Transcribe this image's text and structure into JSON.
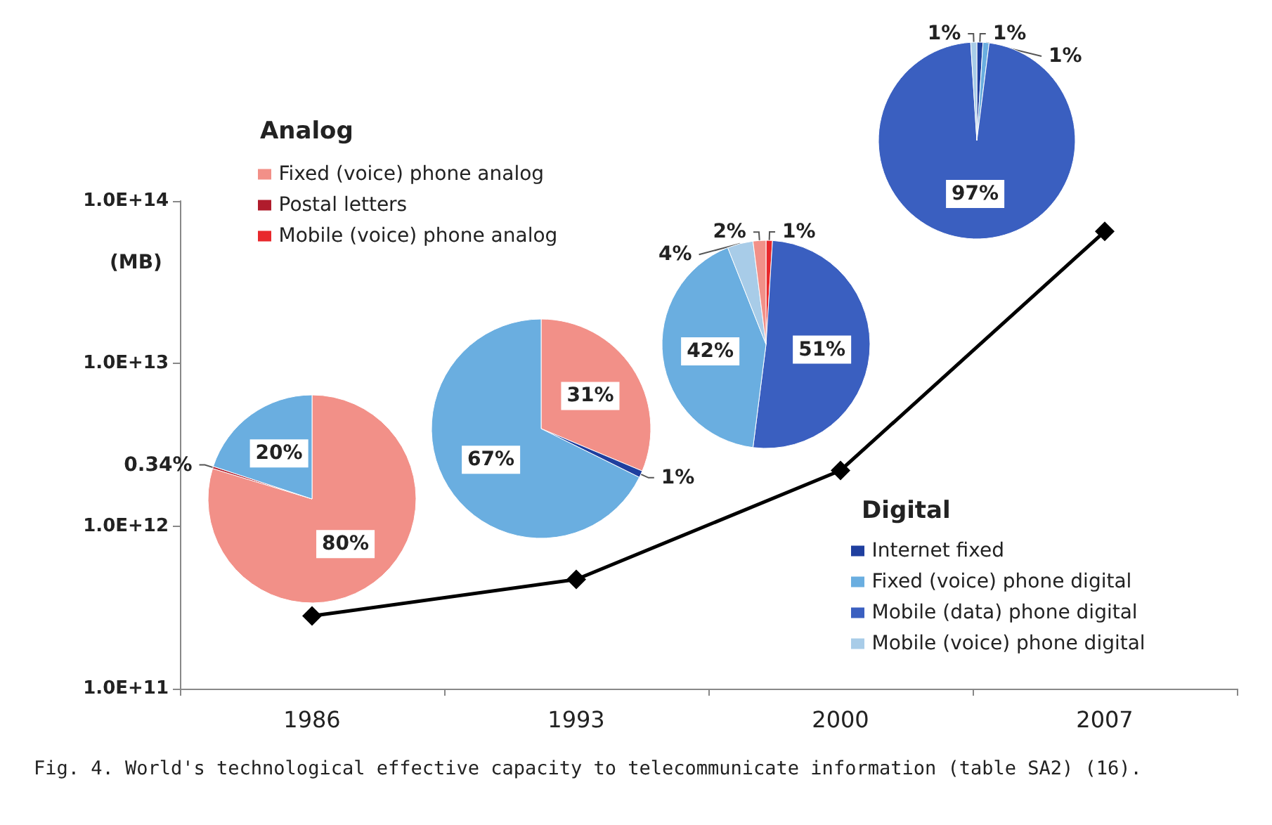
{
  "chart_data": [
    {
      "type": "line",
      "categories": [
        "1986",
        "1993",
        "2000",
        "2007"
      ],
      "values": [
        280000000000.0,
        470000000000.0,
        2200000000000.0,
        65000000000000.0
      ],
      "color": "#000000",
      "marker": "diamond",
      "log": true,
      "ylim": [
        100000000000.0,
        100000000000000.0
      ],
      "yticks": [
        {
          "value": 100000000000.0,
          "label": "1.0E+11"
        },
        {
          "value": 1000000000000.0,
          "label": "1.0E+12"
        },
        {
          "value": 10000000000000.0,
          "label": "1.0E+13"
        },
        {
          "value": 100000000000000.0,
          "label": "1.0E+14"
        }
      ],
      "ylabel": "(MB)",
      "annotations": [
        "Fig. 4. World's technological effective capacity to telecommunicate information (table SA2) (16)."
      ]
    },
    {
      "type": "pie",
      "categories": [
        "Fixed (voice) phone analog",
        "Postal letters",
        "Mobile (voice) phone analog",
        null
      ],
      "values": [
        80,
        0.34,
        null,
        20
      ],
      "value_labels": [
        "80%",
        "0.34%",
        null,
        "20%"
      ],
      "colors": [
        "#f29088",
        "#b01c2c",
        "#e8282c",
        "#6aaee0"
      ],
      "legend": "top right",
      "legend_title": "Analog"
    },
    {
      "type": "pie",
      "categories": [
        null,
        null,
        null
      ],
      "values": [
        31,
        1,
        67
      ],
      "value_labels": [
        "31%",
        "1%",
        "67%"
      ],
      "colors": [
        "#f29088",
        "#1f3f9f",
        "#6aaee0"
      ]
    },
    {
      "type": "pie",
      "categories": [
        null,
        null,
        null,
        null,
        null
      ],
      "values": [
        1,
        51,
        42,
        4,
        2
      ],
      "value_labels": [
        "1%",
        "51%",
        "42%",
        "4%",
        "2%"
      ],
      "colors": [
        "#e8282c",
        "#3a5fc0",
        "#6aaee0",
        "#a8cce8",
        "#f29088"
      ]
    },
    {
      "type": "pie",
      "categories": [
        "Internet fixed",
        "Fixed (voice) phone digital",
        "Mobile (data) phone digital",
        "Mobile (voice) phone digital"
      ],
      "values": [
        1,
        1,
        97,
        1
      ],
      "value_labels": [
        "1%",
        "1%",
        "97%",
        "1%"
      ],
      "colors": [
        "#1f3f9f",
        "#6aaee0",
        "#3a5fc0",
        "#a8cce8"
      ],
      "legend": "bottom right",
      "legend_title": "Digital"
    }
  ]
}
